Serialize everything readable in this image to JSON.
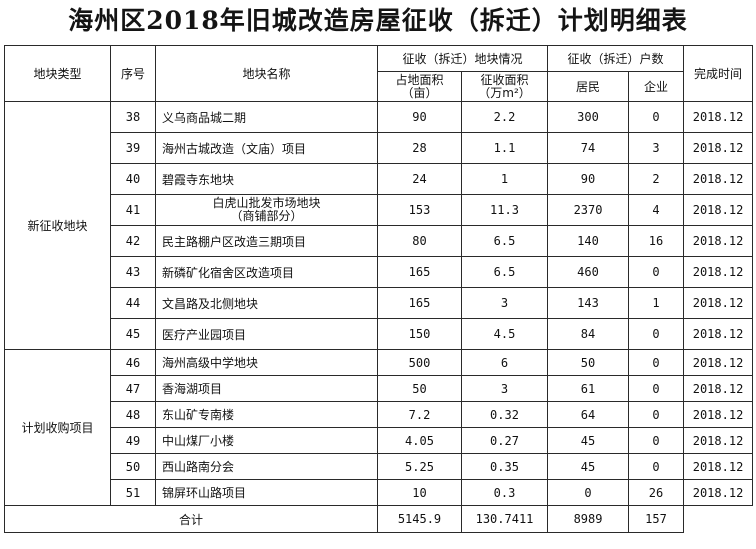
{
  "title": "海州区2018年旧城改造房屋征收（拆迁）计划明细表",
  "headers": {
    "type": "地块类型",
    "no": "序号",
    "name": "地块名称",
    "group_area": "征收（拆迁）地块情况",
    "area_land": "占地面积",
    "area_land_unit": "（亩）",
    "area_house": "征收面积",
    "area_house_unit": "（万m²）",
    "group_households": "征收（拆迁）户数",
    "residents": "居民",
    "enterprises": "企业",
    "finish": "完成时间"
  },
  "groups": [
    {
      "label": "新征收地块",
      "rows": [
        {
          "no": "38",
          "name": "义乌商品城二期",
          "area": "90",
          "house": "2.2",
          "res": "300",
          "ent": "0",
          "date": "2018.12"
        },
        {
          "no": "39",
          "name": "海州古城改造（文庙）项目",
          "area": "28",
          "house": "1.1",
          "res": "74",
          "ent": "3",
          "date": "2018.12"
        },
        {
          "no": "40",
          "name": "碧霞寺东地块",
          "area": "24",
          "house": "1",
          "res": "90",
          "ent": "2",
          "date": "2018.12"
        },
        {
          "no": "41",
          "name": "白虎山批发市场地块",
          "name2": "（商铺部分）",
          "area": "153",
          "house": "11.3",
          "res": "2370",
          "ent": "4",
          "date": "2018.12"
        },
        {
          "no": "42",
          "name": "民主路棚户区改造三期项目",
          "area": "80",
          "house": "6.5",
          "res": "140",
          "ent": "16",
          "date": "2018.12"
        },
        {
          "no": "43",
          "name": "新磷矿化宿舍区改造项目",
          "area": "165",
          "house": "6.5",
          "res": "460",
          "ent": "0",
          "date": "2018.12"
        },
        {
          "no": "44",
          "name": "文昌路及北侧地块",
          "area": "165",
          "house": "3",
          "res": "143",
          "ent": "1",
          "date": "2018.12"
        },
        {
          "no": "45",
          "name": "医疗产业园项目",
          "area": "150",
          "house": "4.5",
          "res": "84",
          "ent": "0",
          "date": "2018.12"
        }
      ]
    },
    {
      "label": "计划收购项目",
      "rows": [
        {
          "no": "46",
          "name": "海州高级中学地块",
          "area": "500",
          "house": "6",
          "res": "50",
          "ent": "0",
          "date": "2018.12"
        },
        {
          "no": "47",
          "name": "香海湖项目",
          "area": "50",
          "house": "3",
          "res": "61",
          "ent": "0",
          "date": "2018.12"
        },
        {
          "no": "48",
          "name": "东山矿专南楼",
          "area": "7.2",
          "house": "0.32",
          "res": "64",
          "ent": "0",
          "date": "2018.12"
        },
        {
          "no": "49",
          "name": "中山煤厂小楼",
          "area": "4.05",
          "house": "0.27",
          "res": "45",
          "ent": "0",
          "date": "2018.12"
        },
        {
          "no": "50",
          "name": "西山路南分会",
          "area": "5.25",
          "house": "0.35",
          "res": "45",
          "ent": "0",
          "date": "2018.12"
        },
        {
          "no": "51",
          "name": "锦屏环山路项目",
          "area": "10",
          "house": "0.3",
          "res": "0",
          "ent": "26",
          "date": "2018.12"
        }
      ]
    }
  ],
  "total": {
    "label": "合计",
    "area": "5145.9",
    "house": "130.7411",
    "res": "8989",
    "ent": "157"
  }
}
